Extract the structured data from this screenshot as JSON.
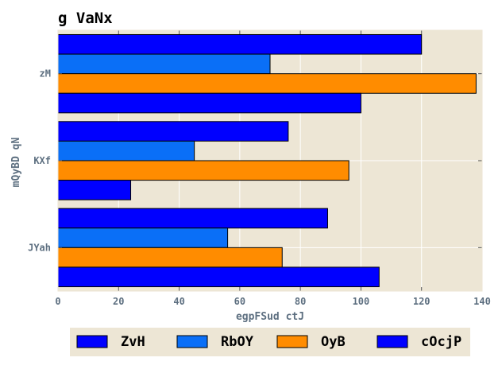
{
  "chart_data": {
    "type": "bar",
    "orientation": "horizontal",
    "title": "g VaNx",
    "xlabel": "egpFSud ctJ",
    "ylabel": "mQyBD qN",
    "categories": [
      "JYah",
      "KXf",
      "zM"
    ],
    "xlim": [
      0,
      140
    ],
    "xticks": [
      0,
      20,
      40,
      60,
      80,
      100,
      120,
      140
    ],
    "grid": true,
    "legend_position": "bottom",
    "series": [
      {
        "name": "ZvH",
        "color": "#0000ff",
        "values": [
          89,
          76,
          120
        ]
      },
      {
        "name": "RbOY",
        "color": "#0a6ff7",
        "values": [
          56,
          45,
          70
        ]
      },
      {
        "name": "OyB",
        "color": "#ff8c00",
        "values": [
          74,
          96,
          138
        ]
      },
      {
        "name": "cOcjP",
        "color": "#0000ff",
        "values": [
          106,
          24,
          100
        ]
      }
    ],
    "colors": {
      "plot_background": "#ede6d5",
      "grid": "#ffffff",
      "legend_background": "#ede6d5"
    }
  }
}
